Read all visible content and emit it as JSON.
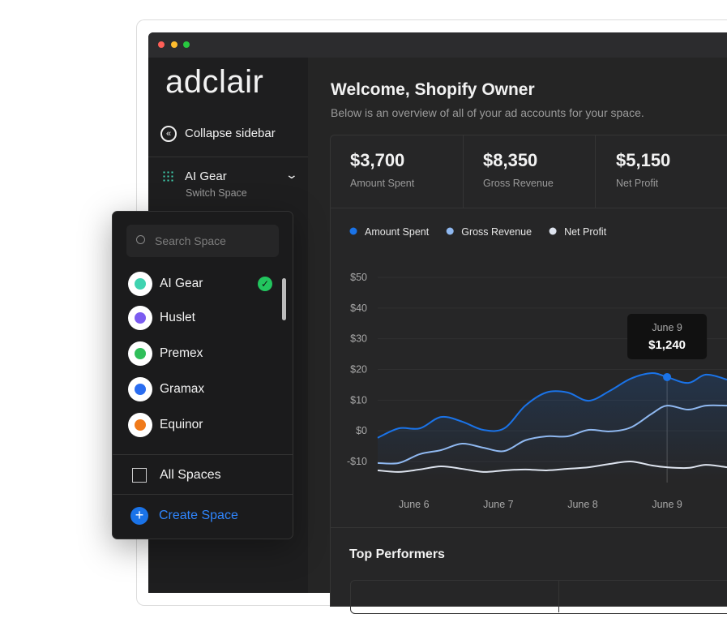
{
  "brand": "adclair",
  "sidebar": {
    "collapse": "Collapse sidebar",
    "space": "AI Gear",
    "switch": "Switch Space"
  },
  "space_menu": {
    "search_placeholder": "Search Space",
    "spaces": [
      "AI Gear",
      "Huslet",
      "Premex",
      "Gramax",
      "Equinor"
    ],
    "all_spaces": "All Spaces",
    "create": "Create Space"
  },
  "header": {
    "title": "Welcome, Shopify Owner",
    "subtitle": "Below is an overview of all of your ad accounts for your space."
  },
  "stats": [
    {
      "value": "$3,700",
      "label": "Amount Spent"
    },
    {
      "value": "$8,350",
      "label": "Gross Revenue"
    },
    {
      "value": "$5,150",
      "label": "Net Profit"
    }
  ],
  "chart_data": {
    "type": "line",
    "x": [
      5.57,
      5.82,
      6.07,
      6.32,
      6.57,
      6.82,
      7.07,
      7.32,
      7.57,
      7.82,
      8.07,
      8.32,
      8.57,
      8.82,
      9,
      9.25,
      9.46,
      9.71
    ],
    "xlim": [
      5.57,
      9.71
    ],
    "xticks": [
      {
        "value": 6,
        "label": "June 6"
      },
      {
        "value": 7,
        "label": "June 7"
      },
      {
        "value": 8,
        "label": "June 8"
      },
      {
        "value": 9,
        "label": "June 9"
      }
    ],
    "ylim": [
      -16,
      53
    ],
    "yticks": [
      {
        "value": 50,
        "label": "$50"
      },
      {
        "value": 40,
        "label": "$40"
      },
      {
        "value": 30,
        "label": "$30"
      },
      {
        "value": 20,
        "label": "$20"
      },
      {
        "value": 10,
        "label": "$10"
      },
      {
        "value": 0,
        "label": "$0"
      },
      {
        "value": -10,
        "label": "-$10"
      }
    ],
    "grid": true,
    "series": [
      {
        "name": "Amount Spent",
        "color": "#1a73e8",
        "values": [
          -2.3,
          0.8,
          0.8,
          4.5,
          3,
          0.3,
          0.8,
          8.2,
          12.5,
          12.5,
          9.8,
          13,
          17,
          18.8,
          17.5,
          15.6,
          18.3,
          16.7
        ]
      },
      {
        "name": "Gross Revenue",
        "color": "#8fb8f0",
        "values": [
          -10.5,
          -10.5,
          -7.6,
          -6.3,
          -4.2,
          -5.5,
          -6.6,
          -3.1,
          -1.8,
          -1.8,
          0.3,
          -0.2,
          1.1,
          5.6,
          8.2,
          6.9,
          8.2,
          8.2
        ]
      },
      {
        "name": "Net Profit",
        "color": "#dde3ee",
        "values": [
          -12.9,
          -13.4,
          -12.6,
          -11.6,
          -12.4,
          -13.4,
          -12.9,
          -12.6,
          -12.9,
          -12.4,
          -11.9,
          -10.8,
          -10,
          -11.3,
          -11.9,
          -12.1,
          -11.1,
          -11.9
        ]
      }
    ],
    "tooltip": {
      "x": 9,
      "label": "June 9",
      "value_label": "$1,240"
    }
  },
  "top_performers": {
    "title": "Top Performers"
  }
}
